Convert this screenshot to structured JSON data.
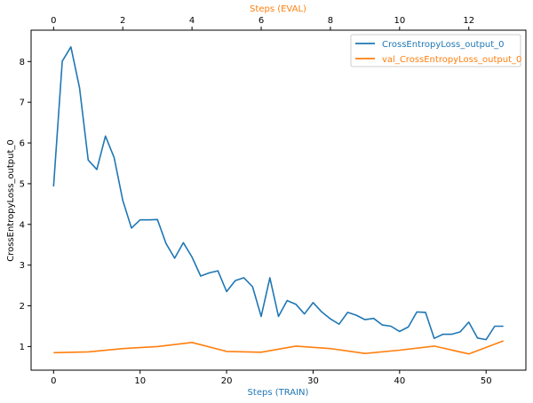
{
  "chart_data": {
    "type": "line",
    "title": "",
    "xlabel": "Steps (TRAIN)",
    "x2label": "Steps (EVAL)",
    "ylabel": "CrossEntropyLoss_output_0",
    "xlim": [
      -2.6,
      54.6
    ],
    "x2lim": [
      -0.65,
      13.65
    ],
    "ylim": [
      0.42,
      8.77
    ],
    "xticks": [
      0,
      10,
      20,
      30,
      40,
      50
    ],
    "x2ticks": [
      0,
      2,
      4,
      6,
      8,
      10,
      12
    ],
    "yticks": [
      1,
      2,
      3,
      4,
      5,
      6,
      7,
      8
    ],
    "grid": false,
    "legend_position": "top-right",
    "colors": {
      "train": "#1f77b4",
      "eval": "#ff7f0e"
    },
    "series": [
      {
        "name": "CrossEntropyLoss_output_0",
        "axis": "train",
        "color": "#1f77b4",
        "x": [
          0,
          1,
          2,
          3,
          4,
          5,
          6,
          7,
          8,
          9,
          10,
          11,
          12,
          13,
          14,
          15,
          16,
          17,
          18,
          19,
          20,
          21,
          22,
          23,
          24,
          25,
          26,
          27,
          28,
          29,
          30,
          31,
          32,
          33,
          34,
          35,
          36,
          37,
          38,
          39,
          40,
          41,
          42,
          43,
          44,
          45,
          46,
          47,
          48,
          49,
          50,
          51,
          52
        ],
        "y": [
          4.93,
          8.01,
          8.36,
          7.36,
          5.58,
          5.35,
          6.17,
          5.64,
          4.59,
          3.91,
          4.11,
          4.11,
          4.12,
          3.53,
          3.17,
          3.55,
          3.2,
          2.73,
          2.81,
          2.86,
          2.35,
          2.62,
          2.69,
          2.47,
          1.74,
          2.69,
          1.74,
          2.13,
          2.04,
          1.8,
          2.08,
          1.85,
          1.68,
          1.55,
          1.84,
          1.77,
          1.66,
          1.69,
          1.53,
          1.5,
          1.37,
          1.48,
          1.85,
          1.84,
          1.2,
          1.3,
          1.3,
          1.36,
          1.6,
          1.21,
          1.17,
          1.5,
          1.5
        ]
      },
      {
        "name": "val_CrossEntropyLoss_output_0",
        "axis": "eval",
        "color": "#ff7f0e",
        "x": [
          0,
          1,
          2,
          3,
          4,
          5,
          6,
          7,
          8,
          9,
          10,
          11,
          12,
          13
        ],
        "y": [
          0.85,
          0.87,
          0.95,
          1.0,
          1.1,
          0.88,
          0.86,
          1.01,
          0.95,
          0.83,
          0.91,
          1.01,
          0.82,
          1.14
        ]
      }
    ]
  }
}
